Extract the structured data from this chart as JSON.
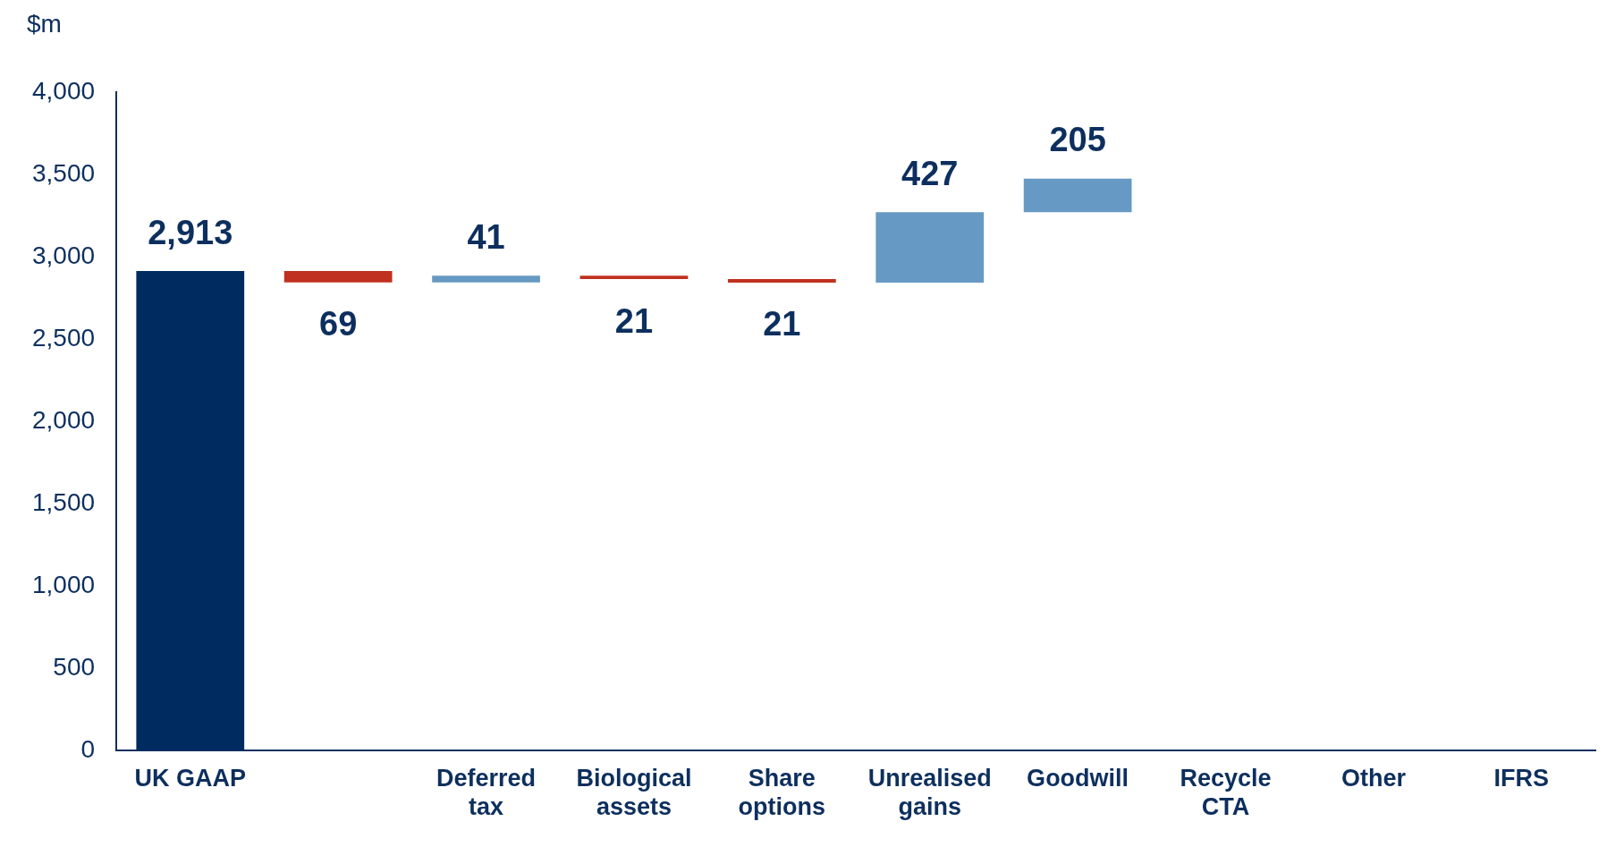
{
  "chart_data": {
    "type": "bar",
    "ylabel": "$m",
    "categories": [
      "UK GAAP",
      null,
      "Deferred\ntax",
      "Biological\nassets",
      "Share\noptions",
      "Unrealised\ngains",
      "Goodwill",
      "Recycle\nCTA",
      "Other",
      "IFRS"
    ],
    "base": [
      0,
      2913,
      2844,
      2885,
      2864,
      2843,
      3270,
      null,
      null,
      null
    ],
    "values": [
      2913,
      -69,
      41,
      -21,
      -21,
      427,
      205,
      null,
      null,
      null
    ],
    "colors": [
      "#002b60",
      "#c0311f",
      "#6699c3",
      "#c0311f",
      "#c0311f",
      "#6699c3",
      "#6699c3",
      null,
      null,
      null
    ],
    "value_labels": [
      "2,913",
      "69",
      "41",
      "21",
      "21",
      "427",
      "205",
      null,
      null,
      null
    ],
    "ylim": [
      0,
      4000
    ],
    "yticks": [
      {
        "value": 0,
        "label": "0"
      },
      {
        "value": 500,
        "label": "500"
      },
      {
        "value": 1000,
        "label": "1,000"
      },
      {
        "value": 1500,
        "label": "1,500"
      },
      {
        "value": 2000,
        "label": "2,000"
      },
      {
        "value": 2500,
        "label": "2,500"
      },
      {
        "value": 3000,
        "label": "3,000"
      },
      {
        "value": 3500,
        "label": "3,500"
      },
      {
        "value": 4000,
        "label": "4,000"
      }
    ],
    "grid": false,
    "legend": false
  }
}
